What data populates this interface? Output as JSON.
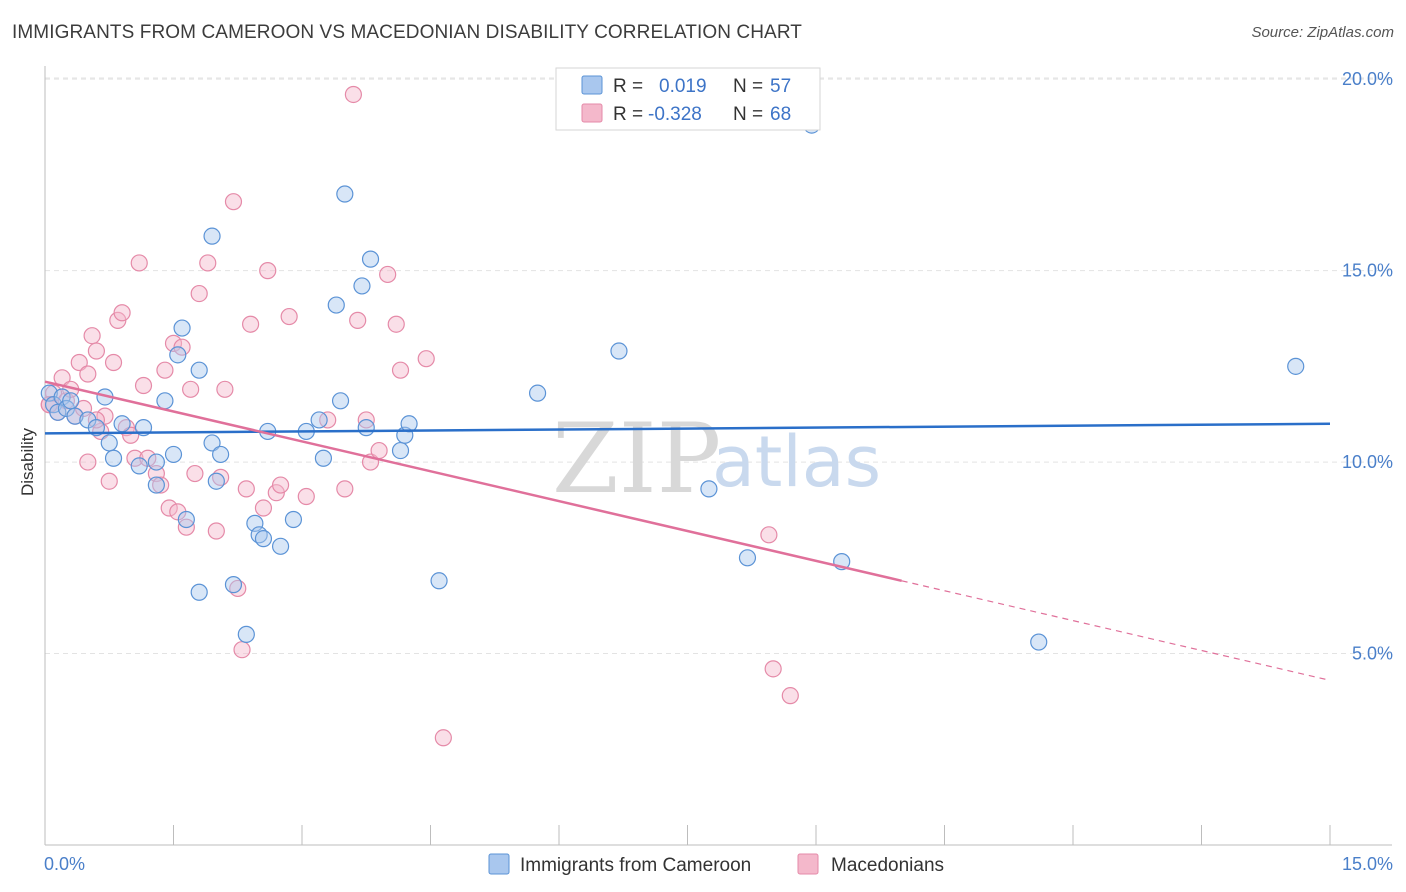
{
  "title": "IMMIGRANTS FROM CAMEROON VS MACEDONIAN DISABILITY CORRELATION CHART",
  "source": "Source: ZipAtlas.com",
  "watermark": {
    "zip": "ZIP",
    "atlas": "atlas"
  },
  "colors": {
    "blue_fill": "#a9c7ee",
    "blue_stroke": "#5b93d6",
    "blue_line": "#2a6fc9",
    "pink_fill": "#f4b8cb",
    "pink_stroke": "#e58aa8",
    "pink_line": "#e0709a",
    "grid": "#e3e3e3",
    "axis": "#bdbdbd"
  },
  "legend": {
    "rows": [
      {
        "r_label": "R =",
        "r_value": "0.019",
        "n_label": "N =",
        "n_value": "57",
        "series": "blue"
      },
      {
        "r_label": "R =",
        "r_value": "-0.328",
        "n_label": "N =",
        "n_value": "68",
        "series": "pink"
      }
    ]
  },
  "bottom_legend": [
    "Immigrants from Cameroon",
    "Macedonians"
  ],
  "chart_data": {
    "type": "scatter",
    "title": "IMMIGRANTS FROM CAMEROON VS MACEDONIAN DISABILITY CORRELATION CHART",
    "xlabel": "",
    "ylabel": "Disability",
    "xlim": [
      0,
      15
    ],
    "ylim": [
      0,
      20.5
    ],
    "x_tick_labels": [
      "0.0%",
      "15.0%"
    ],
    "y_ticks": [
      5,
      10,
      15,
      20
    ],
    "y_tick_labels": [
      "5.0%",
      "10.0%",
      "15.0%",
      "20.0%"
    ],
    "series": [
      {
        "name": "Immigrants from Cameroon",
        "color": "blue",
        "R": 0.019,
        "N": 57,
        "trend": {
          "x0": 0,
          "y0": 10.75,
          "x1": 15,
          "y1": 11.0
        },
        "points": [
          [
            0.05,
            11.8
          ],
          [
            0.1,
            11.5
          ],
          [
            0.15,
            11.3
          ],
          [
            0.2,
            11.7
          ],
          [
            0.25,
            11.4
          ],
          [
            0.3,
            11.6
          ],
          [
            0.35,
            11.2
          ],
          [
            0.5,
            11.1
          ],
          [
            0.6,
            10.9
          ],
          [
            0.7,
            11.7
          ],
          [
            0.75,
            10.5
          ],
          [
            0.8,
            10.1
          ],
          [
            0.9,
            11.0
          ],
          [
            1.1,
            9.9
          ],
          [
            1.15,
            10.9
          ],
          [
            1.3,
            9.4
          ],
          [
            1.3,
            10.0
          ],
          [
            1.4,
            11.6
          ],
          [
            1.5,
            10.2
          ],
          [
            1.55,
            12.8
          ],
          [
            1.6,
            13.5
          ],
          [
            1.65,
            8.5
          ],
          [
            1.8,
            12.4
          ],
          [
            1.8,
            6.6
          ],
          [
            1.95,
            10.5
          ],
          [
            1.95,
            15.9
          ],
          [
            2.0,
            9.5
          ],
          [
            2.05,
            10.2
          ],
          [
            2.2,
            6.8
          ],
          [
            2.35,
            5.5
          ],
          [
            2.45,
            8.4
          ],
          [
            2.5,
            8.1
          ],
          [
            2.55,
            8.0
          ],
          [
            2.6,
            10.8
          ],
          [
            2.75,
            7.8
          ],
          [
            2.9,
            8.5
          ],
          [
            3.05,
            10.8
          ],
          [
            3.2,
            11.1
          ],
          [
            3.25,
            10.1
          ],
          [
            3.4,
            14.1
          ],
          [
            3.45,
            11.6
          ],
          [
            3.5,
            17.0
          ],
          [
            3.7,
            14.6
          ],
          [
            3.75,
            10.9
          ],
          [
            3.8,
            15.3
          ],
          [
            4.15,
            10.3
          ],
          [
            4.2,
            10.7
          ],
          [
            4.25,
            11.0
          ],
          [
            4.6,
            6.9
          ],
          [
            5.75,
            11.8
          ],
          [
            6.7,
            12.9
          ],
          [
            7.75,
            9.3
          ],
          [
            8.2,
            7.5
          ],
          [
            8.95,
            18.8
          ],
          [
            9.3,
            7.4
          ],
          [
            11.6,
            5.3
          ],
          [
            14.6,
            12.5
          ]
        ]
      },
      {
        "name": "Macedonians",
        "color": "pink",
        "R": -0.328,
        "N": 68,
        "trend": {
          "x0": 0,
          "y0": 12.1,
          "x1": 10.0,
          "y1": 6.9,
          "dash_x1": 15,
          "dash_y1": 4.3
        },
        "points": [
          [
            0.05,
            11.5
          ],
          [
            0.1,
            11.8
          ],
          [
            0.15,
            11.3
          ],
          [
            0.2,
            12.2
          ],
          [
            0.25,
            11.6
          ],
          [
            0.3,
            11.9
          ],
          [
            0.35,
            11.2
          ],
          [
            0.4,
            12.6
          ],
          [
            0.45,
            11.4
          ],
          [
            0.5,
            10.0
          ],
          [
            0.5,
            12.3
          ],
          [
            0.55,
            13.3
          ],
          [
            0.6,
            12.9
          ],
          [
            0.65,
            10.8
          ],
          [
            0.7,
            11.2
          ],
          [
            0.75,
            9.5
          ],
          [
            0.8,
            12.6
          ],
          [
            0.85,
            13.7
          ],
          [
            0.9,
            13.9
          ],
          [
            0.95,
            10.9
          ],
          [
            1.0,
            10.7
          ],
          [
            1.05,
            10.1
          ],
          [
            1.1,
            15.2
          ],
          [
            1.15,
            12.0
          ],
          [
            1.2,
            10.1
          ],
          [
            1.3,
            9.7
          ],
          [
            1.35,
            9.4
          ],
          [
            1.4,
            12.4
          ],
          [
            1.45,
            8.8
          ],
          [
            1.5,
            13.1
          ],
          [
            1.55,
            8.7
          ],
          [
            1.6,
            13.0
          ],
          [
            1.65,
            8.3
          ],
          [
            1.7,
            11.9
          ],
          [
            1.75,
            9.7
          ],
          [
            1.8,
            14.4
          ],
          [
            1.9,
            15.2
          ],
          [
            2.0,
            8.2
          ],
          [
            2.05,
            9.6
          ],
          [
            2.1,
            11.9
          ],
          [
            2.2,
            16.8
          ],
          [
            2.25,
            6.7
          ],
          [
            2.3,
            5.1
          ],
          [
            2.35,
            9.3
          ],
          [
            2.4,
            13.6
          ],
          [
            2.55,
            8.8
          ],
          [
            2.6,
            15.0
          ],
          [
            2.7,
            9.2
          ],
          [
            2.75,
            9.4
          ],
          [
            2.85,
            13.8
          ],
          [
            3.05,
            9.1
          ],
          [
            3.3,
            11.1
          ],
          [
            3.5,
            9.3
          ],
          [
            3.6,
            19.6
          ],
          [
            3.65,
            13.7
          ],
          [
            3.75,
            11.1
          ],
          [
            3.8,
            10.0
          ],
          [
            3.9,
            10.3
          ],
          [
            4.0,
            14.9
          ],
          [
            4.1,
            13.6
          ],
          [
            4.15,
            12.4
          ],
          [
            4.45,
            12.7
          ],
          [
            4.65,
            2.8
          ],
          [
            8.45,
            8.1
          ],
          [
            8.5,
            4.6
          ],
          [
            8.7,
            3.9
          ],
          [
            0.05,
            11.5
          ],
          [
            0.6,
            11.1
          ]
        ]
      }
    ]
  }
}
